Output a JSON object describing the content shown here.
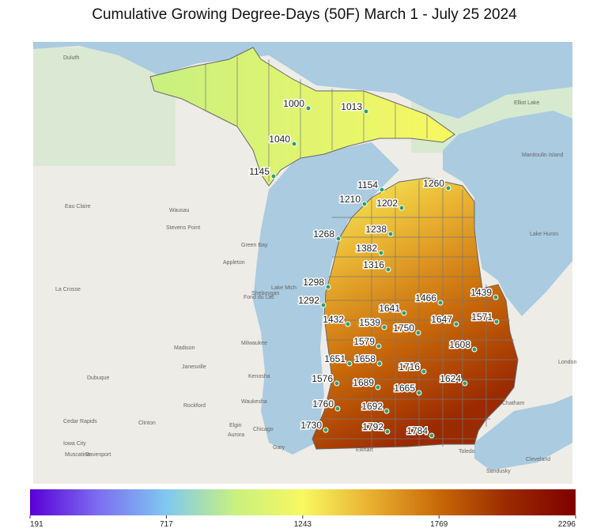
{
  "title": "Cumulative Growing Degree-Days (50F) March 1 - July 25 2024",
  "stations": [
    1000,
    1013,
    1040,
    1145,
    1154,
    1260,
    1210,
    1202,
    1238,
    1268,
    1382,
    1316,
    1298,
    1466,
    1439,
    1292,
    1641,
    1432,
    1539,
    1750,
    1647,
    1571,
    1579,
    1608,
    1651,
    1658,
    1716,
    1576,
    1689,
    1624,
    1665,
    1760,
    1692,
    1730,
    1792,
    1784
  ],
  "station_color": "#2e9e6b",
  "basemap_labels": [
    "Lake Huron",
    "Lake Mich",
    "Madison",
    "Milwaukee",
    "Chicago",
    "Dubuque",
    "Rockford",
    "Waukesha",
    "Kenosha",
    "Janesville",
    "Sheboygan",
    "Green Bay",
    "Wausau",
    "Eau Claire",
    "La Crosse",
    "Cedar Rapids",
    "Davenport",
    "Muscatine",
    "Iowa City",
    "Elgin",
    "Aurora",
    "Gary",
    "Elkhart",
    "Toledo",
    "Sandusky",
    "Cleveland",
    "Chatham",
    "London",
    "Duluth",
    "Appleton",
    "Stevens Point",
    "Fond du Lac",
    "Clinton",
    "Elliot Lake",
    "Manitoulin Island"
  ],
  "colorbar": {
    "range": [
      191,
      2296
    ],
    "ticks": [
      191,
      717,
      1243,
      1769,
      2296
    ],
    "colors": [
      "#5a00d6",
      "#7c6ef0",
      "#80c8f0",
      "#c8f080",
      "#f8f860",
      "#e8b030",
      "#c86808",
      "#9a2a00",
      "#800000"
    ]
  }
}
